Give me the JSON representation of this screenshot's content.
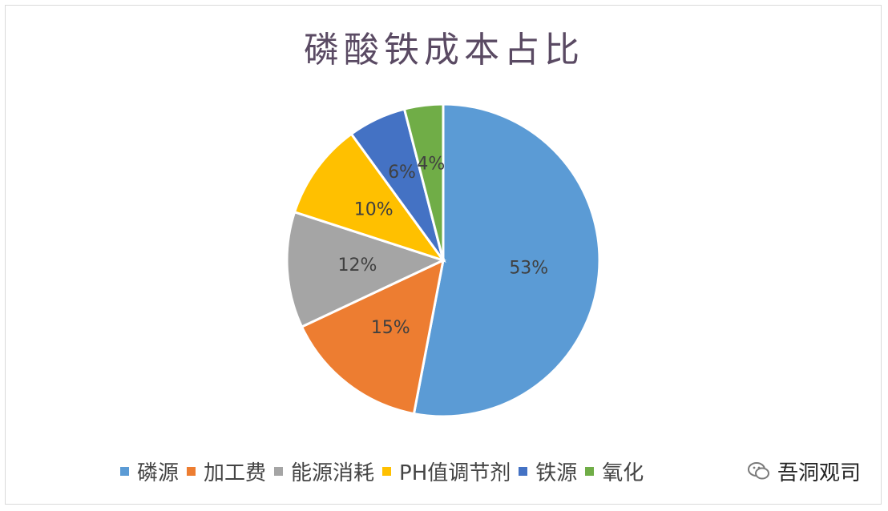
{
  "chart_data": {
    "type": "pie",
    "title": "磷酸铁成本占比",
    "slices": [
      {
        "label": "磷源",
        "value": 53,
        "display": "53%",
        "color": "#5b9bd5"
      },
      {
        "label": "加工费",
        "value": 15,
        "display": "15%",
        "color": "#ed7d31"
      },
      {
        "label": "能源消耗",
        "value": 12,
        "display": "12%",
        "color": "#a5a5a5"
      },
      {
        "label": "PH值调节剂",
        "value": 10,
        "display": "10%",
        "color": "#ffc000"
      },
      {
        "label": "铁源",
        "value": 6,
        "display": "6%",
        "color": "#4472c4"
      },
      {
        "label": "氧化剂",
        "value": 4,
        "display": "4%",
        "color": "#70ad47"
      }
    ],
    "legend": "bottom"
  },
  "legend_visible_labels": [
    "磷源",
    "加工费",
    "能源消耗",
    "PH值调节剂",
    "铁源",
    "氧化"
  ],
  "watermark": {
    "text": "吾洞观司",
    "icon": "wechat-logo-icon"
  }
}
